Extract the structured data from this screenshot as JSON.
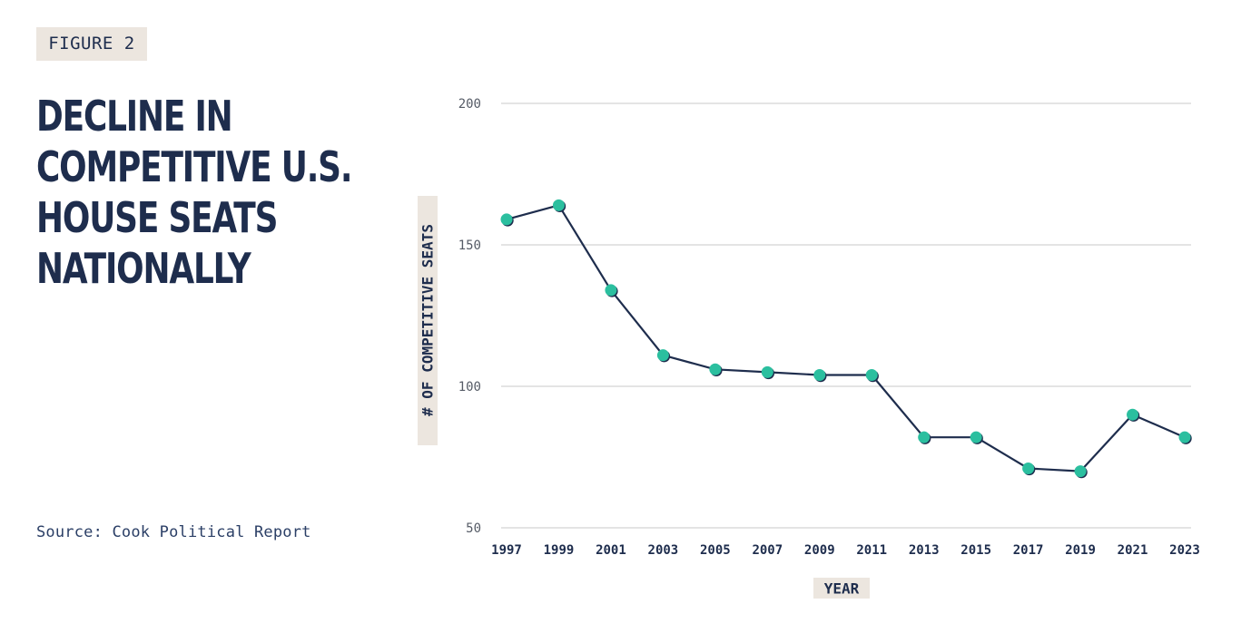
{
  "figure_label": "FIGURE 2",
  "title": "DECLINE IN COMPETITIVE U.S. HOUSE SEATS NATIONALLY",
  "source": "Source: Cook Political Report",
  "colors": {
    "navy": "#1e2d4d",
    "teal": "#2bbf9f",
    "badge_bg": "#ece6df",
    "grid": "#c8c8c8"
  },
  "chart_data": {
    "type": "line",
    "title": "DECLINE IN COMPETITIVE U.S. HOUSE SEATS NATIONALLY",
    "xlabel": "YEAR",
    "ylabel": "# OF COMPETITIVE SEATS",
    "x": [
      "1997",
      "1999",
      "2001",
      "2003",
      "2005",
      "2007",
      "2009",
      "2011",
      "2013",
      "2015",
      "2017",
      "2019",
      "2021",
      "2023"
    ],
    "series": [
      {
        "values": [
          159,
          164,
          134,
          111,
          106,
          105,
          104,
          104,
          82,
          82,
          71,
          70,
          90,
          82
        ]
      }
    ],
    "ylim": [
      50,
      200
    ],
    "yticks": [
      50,
      100,
      150,
      200
    ],
    "grid": "horizontal",
    "legend": "none"
  }
}
